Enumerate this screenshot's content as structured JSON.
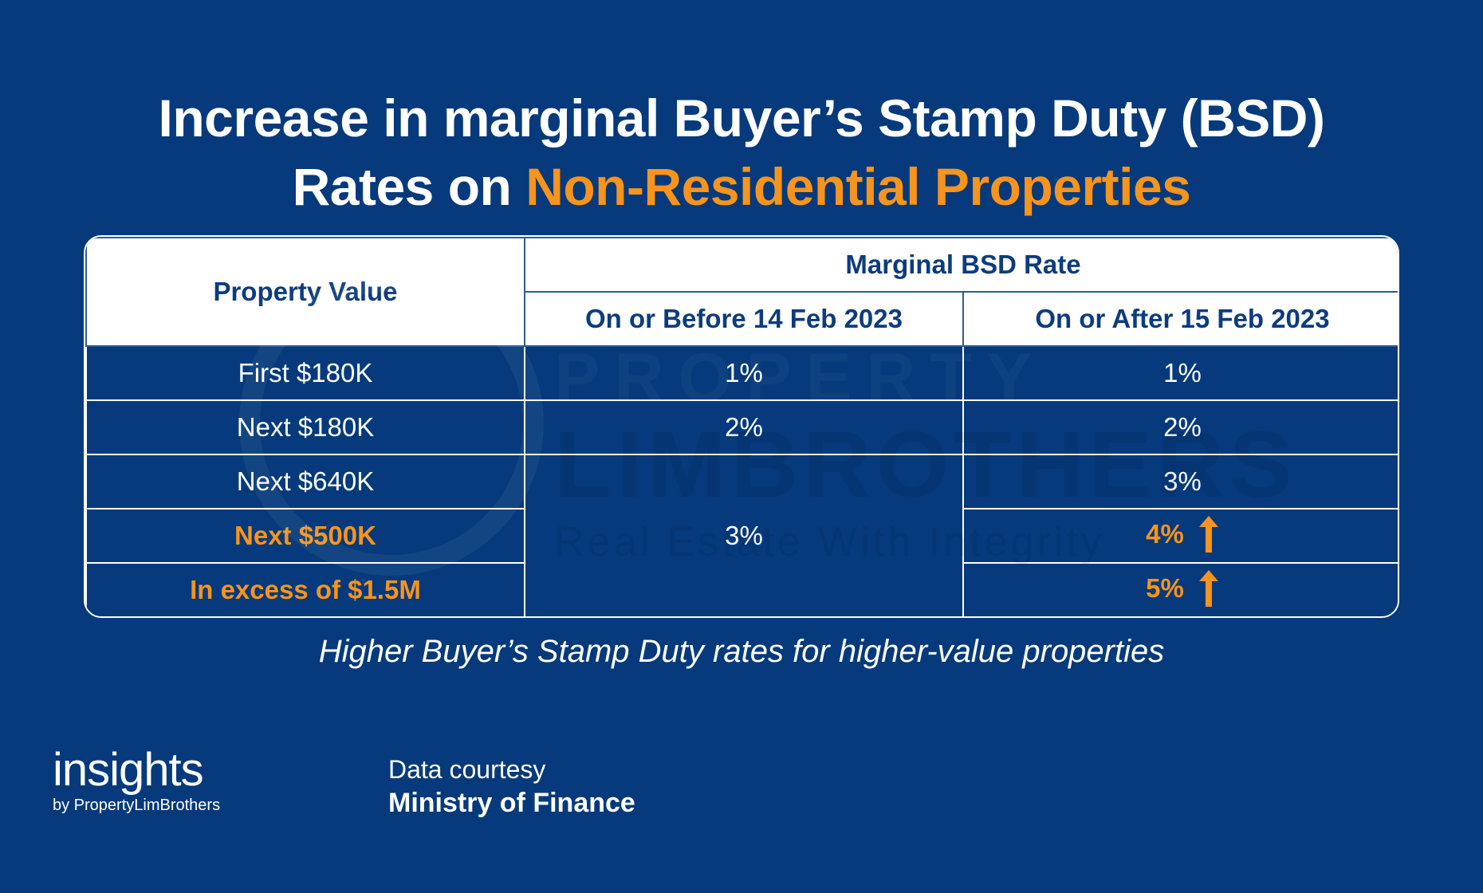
{
  "title": {
    "line1": "Increase in marginal Buyer’s Stamp Duty (BSD)",
    "line2_prefix": "Rates on ",
    "line2_accent": "Non-Residential Properties"
  },
  "watermark": {
    "line1": "PROPERTY",
    "line2": "LIMBROTHERS",
    "line3": "Real Estate With Integrity"
  },
  "table": {
    "header_property": "Property Value",
    "header_group": "Marginal BSD Rate",
    "header_before": "On or Before 14 Feb 2023",
    "header_after": "On or After 15 Feb 2023",
    "rows": [
      {
        "label": "First $180K",
        "before": "1%",
        "after": "1%"
      },
      {
        "label": "Next $180K",
        "before": "2%",
        "after": "2%"
      },
      {
        "label": "Next $640K",
        "after": "3%"
      },
      {
        "label": "Next $500K",
        "after": "4%"
      },
      {
        "label": "In excess of $1.5M",
        "after": "5%"
      }
    ],
    "merged_before": "3%"
  },
  "caption": "Higher Buyer’s Stamp Duty rates for higher-value properties",
  "footer": {
    "logo_main": "insights",
    "logo_sub": "by PropertyLimBrothers",
    "credit_line1": "Data courtesy",
    "credit_line2": "Ministry of Finance"
  },
  "colors": {
    "background": "#063a7c",
    "accent": "#f7941d",
    "header_text": "#0d3c7e"
  }
}
